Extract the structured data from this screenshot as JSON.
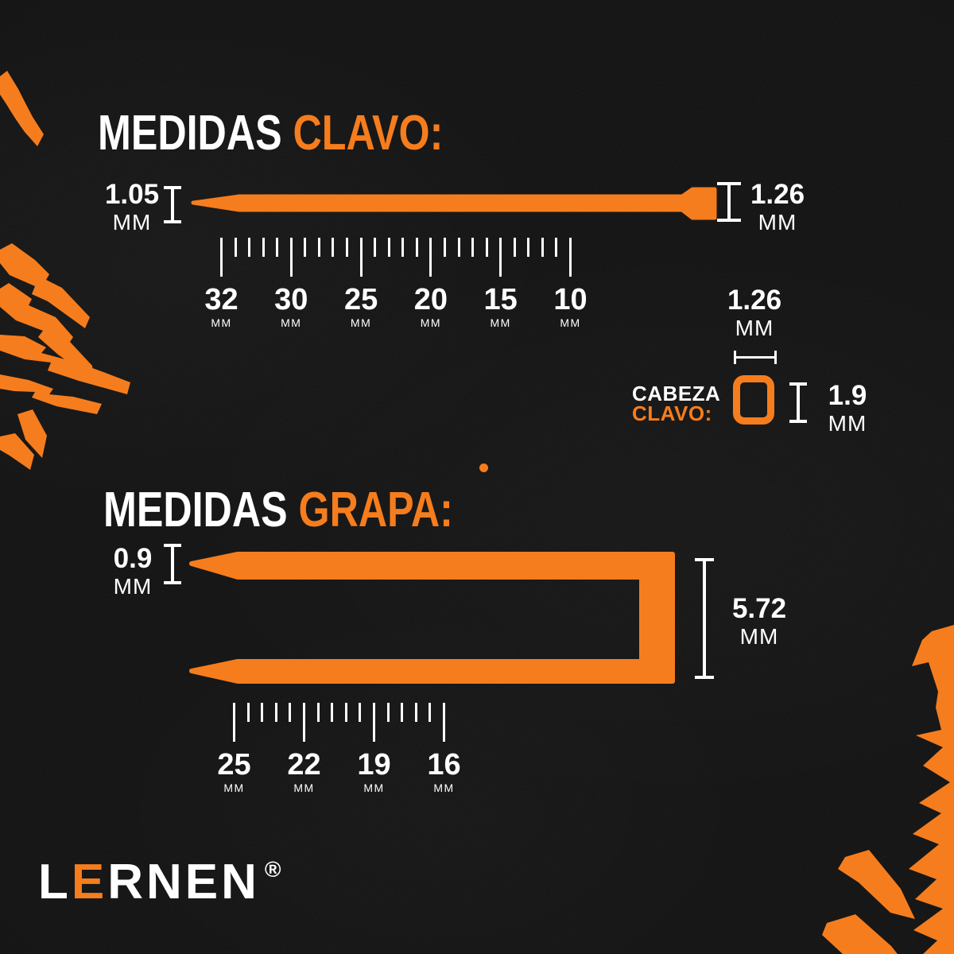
{
  "colors": {
    "accent": "#F67D1D",
    "background": "#101010",
    "text": "#FFFFFF"
  },
  "clavo": {
    "title": {
      "white": "MEDIDAS",
      "accent": "CLAVO:"
    },
    "shank_diameter": {
      "value": "1.05",
      "unit": "MM"
    },
    "head_diameter": {
      "value": "1.26",
      "unit": "MM"
    },
    "ruler": {
      "labels": [
        "32",
        "30",
        "25",
        "20",
        "15",
        "10"
      ],
      "unit": "MM",
      "minor_ticks_between": 4
    }
  },
  "cabeza_clavo": {
    "label": {
      "white": "CABEZA",
      "accent": "CLAVO:"
    },
    "width": {
      "value": "1.26",
      "unit": "MM"
    },
    "height": {
      "value": "1.9",
      "unit": "MM"
    }
  },
  "grapa": {
    "title": {
      "white": "MEDIDAS",
      "accent": "GRAPA:"
    },
    "wire_diameter": {
      "value": "0.9",
      "unit": "MM"
    },
    "crown_width": {
      "value": "5.72",
      "unit": "MM"
    },
    "ruler": {
      "labels": [
        "25",
        "22",
        "19",
        "16"
      ],
      "unit": "MM",
      "minor_ticks_between": 4
    }
  },
  "logo": {
    "prefix": "L",
    "accent": "E",
    "suffix": "RNEN",
    "mark": "®"
  }
}
